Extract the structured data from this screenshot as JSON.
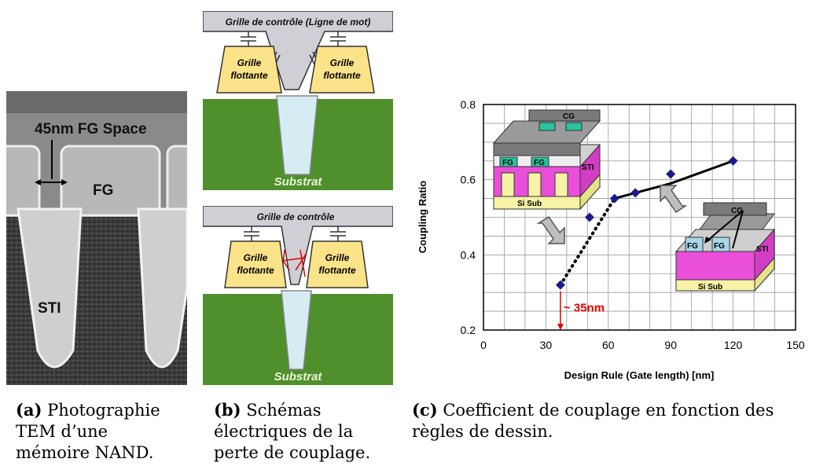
{
  "panel_a": {
    "label_space": "45nm FG Space",
    "label_fg": "FG",
    "label_sti": "STI"
  },
  "panel_b": {
    "top": {
      "control_gate": "Grille de contrôle (Ligne de mot)",
      "fg_left_1": "Grille",
      "fg_left_2": "flottante",
      "fg_right_1": "Grille",
      "fg_right_2": "flottante",
      "substrate": "Substrat"
    },
    "bottom": {
      "control_gate": "Grille de contrôle",
      "fg_left_1": "Grille",
      "fg_left_2": "flottante",
      "fg_right_1": "Grille",
      "fg_right_2": "flottante",
      "substrate": "Substrat"
    }
  },
  "panel_c": {
    "annotation": "~ 35nm",
    "inset1": {
      "cg": "CG",
      "fg1": "FG",
      "fg2": "FG",
      "sti": "STI",
      "sub": "Si Sub"
    },
    "inset2": {
      "cg": "CG",
      "fg1": "FG",
      "fg2": "FG",
      "sti": "STI",
      "sub": "Si Sub"
    }
  },
  "chart_data": {
    "type": "scatter",
    "title": "",
    "xlabel": "Design Rule (Gate length) [nm]",
    "ylabel": "Coupling Ratio",
    "xlim": [
      0,
      150
    ],
    "ylim": [
      0.2,
      0.8
    ],
    "xticks": [
      0,
      30,
      60,
      90,
      120,
      150
    ],
    "yticks": [
      0.2,
      0.4,
      0.6,
      0.8
    ],
    "xtick_labels": [
      "0",
      "30",
      "60",
      "90",
      "120",
      "150"
    ],
    "ytick_labels": [
      "0.2",
      "0.4",
      "0.6",
      "0.8"
    ],
    "grid": true,
    "series": [
      {
        "x": [
          37,
          51,
          63,
          73,
          90,
          120
        ],
        "y": [
          0.32,
          0.5,
          0.55,
          0.565,
          0.615,
          0.65
        ]
      }
    ],
    "trend_solid": {
      "x": [
        63,
        73,
        90,
        120
      ],
      "y": [
        0.55,
        0.565,
        0.59,
        0.65
      ]
    },
    "trend_dotted": {
      "x": [
        37,
        63
      ],
      "y": [
        0.32,
        0.55
      ]
    },
    "marker_color": "#1a1a8c",
    "annotation_color": "#e00000"
  },
  "captions": {
    "a_label": "(a)",
    "a_text": "Photographie TEM d’une mémoire NAND.",
    "b_label": "(b)",
    "b_text": "Schémas électriques de la perte de couplage.",
    "c_label": "(c)",
    "c_text": "Coefficient de couplage en fonction des règles de dessin."
  }
}
